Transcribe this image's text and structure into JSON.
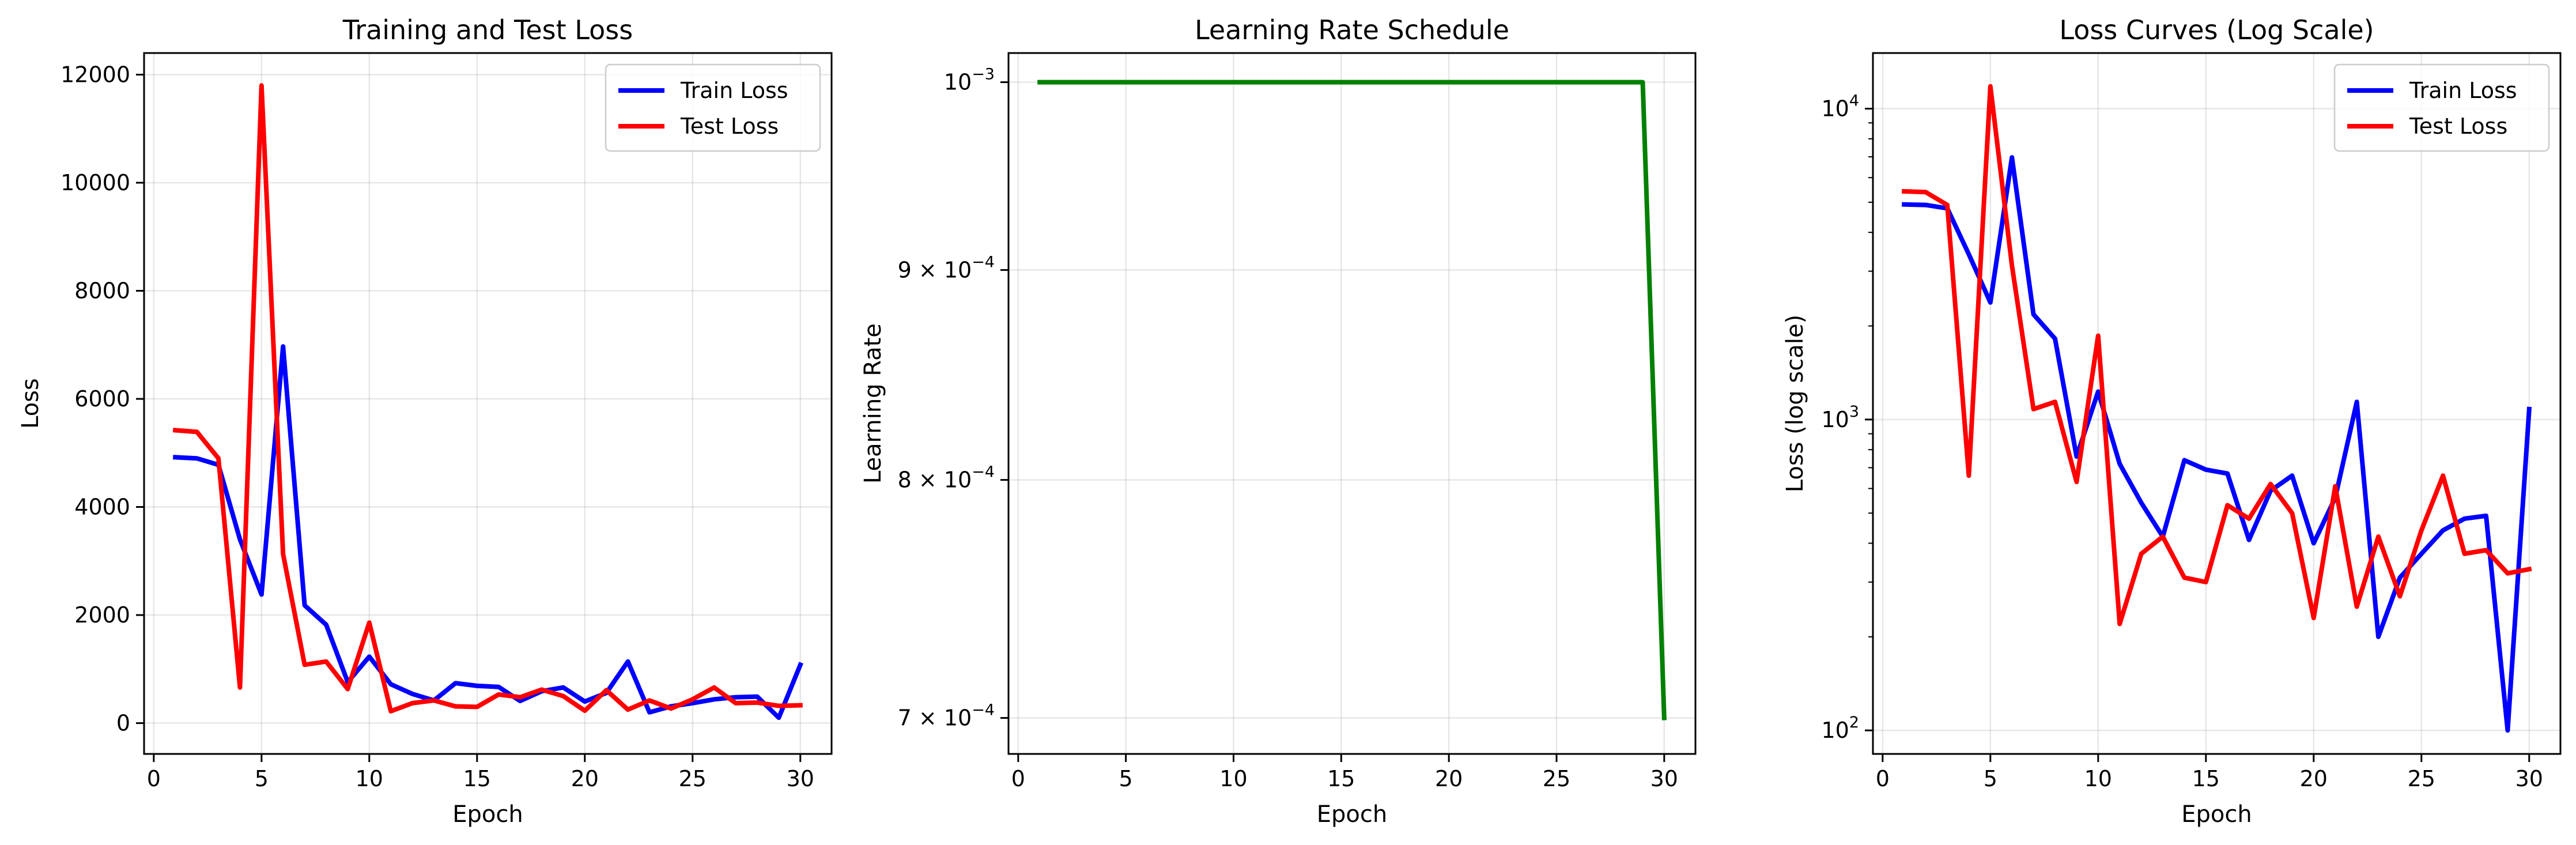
{
  "chart_data": [
    {
      "type": "line",
      "title": "Training and Test Loss",
      "xlabel": "Epoch",
      "ylabel": "Loss",
      "xlim": [
        -0.45,
        31.45
      ],
      "ylim": [
        -570,
        12400
      ],
      "yscale": "linear",
      "grid": true,
      "legend": "top-right",
      "xticks": [
        0,
        5,
        10,
        15,
        20,
        25,
        30
      ],
      "xtick_labels": [
        "0",
        "5",
        "10",
        "15",
        "20",
        "25",
        "30"
      ],
      "yticks": [
        0,
        2000,
        4000,
        6000,
        8000,
        10000,
        12000
      ],
      "ytick_labels": [
        "0",
        "2000",
        "4000",
        "6000",
        "8000",
        "10000",
        "12000"
      ],
      "x": [
        1,
        2,
        3,
        4,
        5,
        6,
        7,
        8,
        9,
        10,
        11,
        12,
        13,
        14,
        15,
        16,
        17,
        18,
        19,
        20,
        21,
        22,
        23,
        24,
        25,
        26,
        27,
        28,
        29,
        30
      ],
      "series": [
        {
          "name": "Train Loss",
          "color": "#0000ff",
          "values": [
            4920,
            4900,
            4780,
            3400,
            2380,
            6970,
            2180,
            1820,
            760,
            1230,
            720,
            540,
            420,
            740,
            690,
            670,
            410,
            590,
            660,
            400,
            560,
            1140,
            200,
            310,
            370,
            440,
            480,
            490,
            100,
            1080
          ]
        },
        {
          "name": "Test Loss",
          "color": "#ff0000",
          "values": [
            5420,
            5390,
            4900,
            660,
            11800,
            3130,
            1080,
            1140,
            630,
            1860,
            220,
            370,
            420,
            310,
            300,
            530,
            480,
            620,
            500,
            230,
            610,
            250,
            420,
            270,
            440,
            660,
            370,
            380,
            320,
            330
          ]
        }
      ]
    },
    {
      "type": "line",
      "title": "Learning Rate Schedule",
      "xlabel": "Epoch",
      "ylabel": "Learning Rate",
      "xlim": [
        -0.45,
        31.45
      ],
      "ylim": [
        0.000686,
        0.0010165
      ],
      "yscale": "log",
      "grid": true,
      "xticks": [
        0,
        5,
        10,
        15,
        20,
        25,
        30
      ],
      "xtick_labels": [
        "0",
        "5",
        "10",
        "15",
        "20",
        "25",
        "30"
      ],
      "yticks": [
        0.0007,
        0.0008,
        0.0009,
        0.001
      ],
      "ytick_labels": [
        {
          "base": "7 × 10",
          "exp": "−4"
        },
        {
          "base": "8 × 10",
          "exp": "−4"
        },
        {
          "base": "9 × 10",
          "exp": "−4"
        },
        {
          "base": "10",
          "exp": "−3"
        }
      ],
      "x": [
        1,
        2,
        3,
        4,
        5,
        6,
        7,
        8,
        9,
        10,
        11,
        12,
        13,
        14,
        15,
        16,
        17,
        18,
        19,
        20,
        21,
        22,
        23,
        24,
        25,
        26,
        27,
        28,
        29,
        30
      ],
      "series": [
        {
          "color": "#008000",
          "values": [
            0.001,
            0.001,
            0.001,
            0.001,
            0.001,
            0.001,
            0.001,
            0.001,
            0.001,
            0.001,
            0.001,
            0.001,
            0.001,
            0.001,
            0.001,
            0.001,
            0.001,
            0.001,
            0.001,
            0.001,
            0.001,
            0.001,
            0.001,
            0.001,
            0.001,
            0.001,
            0.001,
            0.001,
            0.001,
            0.0007
          ]
        }
      ]
    },
    {
      "type": "line",
      "title": "Loss Curves (Log Scale)",
      "xlabel": "Epoch",
      "ylabel": "Loss (log scale)",
      "xlim": [
        -0.45,
        31.45
      ],
      "ylim": [
        84,
        15100
      ],
      "yscale": "log",
      "grid": true,
      "legend": "top-right",
      "xticks": [
        0,
        5,
        10,
        15,
        20,
        25,
        30
      ],
      "xtick_labels": [
        "0",
        "5",
        "10",
        "15",
        "20",
        "25",
        "30"
      ],
      "yticks": [
        100,
        1000,
        10000
      ],
      "ytick_labels": [
        {
          "base": "10",
          "exp": "2"
        },
        {
          "base": "10",
          "exp": "3"
        },
        {
          "base": "10",
          "exp": "4"
        }
      ],
      "x": [
        1,
        2,
        3,
        4,
        5,
        6,
        7,
        8,
        9,
        10,
        11,
        12,
        13,
        14,
        15,
        16,
        17,
        18,
        19,
        20,
        21,
        22,
        23,
        24,
        25,
        26,
        27,
        28,
        29,
        30
      ],
      "series": [
        {
          "name": "Train Loss",
          "color": "#0000ff",
          "values": [
            4920,
            4900,
            4780,
            3400,
            2380,
            6970,
            2180,
            1820,
            760,
            1230,
            720,
            540,
            420,
            740,
            690,
            670,
            410,
            590,
            660,
            400,
            560,
            1140,
            200,
            310,
            370,
            440,
            480,
            490,
            100,
            1080
          ]
        },
        {
          "name": "Test Loss",
          "color": "#ff0000",
          "values": [
            5420,
            5390,
            4900,
            660,
            11800,
            3130,
            1080,
            1140,
            630,
            1860,
            220,
            370,
            420,
            310,
            300,
            530,
            480,
            620,
            500,
            230,
            610,
            250,
            420,
            270,
            440,
            660,
            370,
            380,
            320,
            330
          ]
        }
      ]
    }
  ]
}
